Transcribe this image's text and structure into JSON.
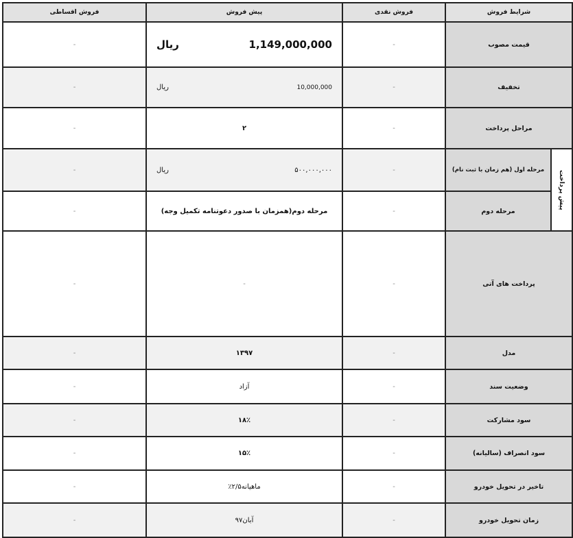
{
  "headers": {
    "installment": "فروش اقساطی",
    "presale": "پیش فروش",
    "cash": "فروش نقدی",
    "conditions": "شرایط فروش"
  },
  "prepayment_group_label": "پیش پرداخت",
  "rows": [
    {
      "label": "قیمت مصوب",
      "installment": "-",
      "presale_amount": "1,149,000,000",
      "presale_unit": "ریال",
      "cash": "-"
    },
    {
      "label": "تخفیف",
      "installment": "-",
      "presale_amount": "10,000,000",
      "presale_unit": "ریال",
      "cash": "-"
    },
    {
      "label": "مراحل پرداخت",
      "installment": "-",
      "presale": "۲",
      "cash": "-"
    },
    {
      "label": "مرحله اول (هم زمان با ثبت نام)",
      "installment": "-",
      "presale_amount": "۵۰۰,۰۰۰,۰۰۰",
      "presale_unit": "ریال",
      "cash": "-"
    },
    {
      "label": "مرحله دوم",
      "installment": "-",
      "presale": "مرحله دوم(همزمان با صدور دعوتنامه تکمیل وجه)",
      "cash": "-"
    },
    {
      "label": "پرداخت های آتی",
      "installment": "-",
      "presale": "-",
      "cash": "-"
    },
    {
      "label": "مدل",
      "installment": "-",
      "presale": "۱۳۹۷",
      "cash": "-"
    },
    {
      "label": "وضعیت سند",
      "installment": "-",
      "presale": "آزاد",
      "cash": "-"
    },
    {
      "label": "سود مشارکت",
      "installment": "-",
      "presale": "۱۸٪",
      "cash": "-"
    },
    {
      "label": "سود انصراف (سالیانه)",
      "installment": "-",
      "presale": "۱۵٪",
      "cash": "-"
    },
    {
      "label": "تاخیر در تحویل خودرو",
      "installment": "-",
      "presale": "٪۲/۵ماهیانه",
      "cash": "-"
    },
    {
      "label": "زمان تحویل خودرو",
      "installment": "-",
      "presale": "آبان۹۷",
      "cash": "-"
    }
  ]
}
